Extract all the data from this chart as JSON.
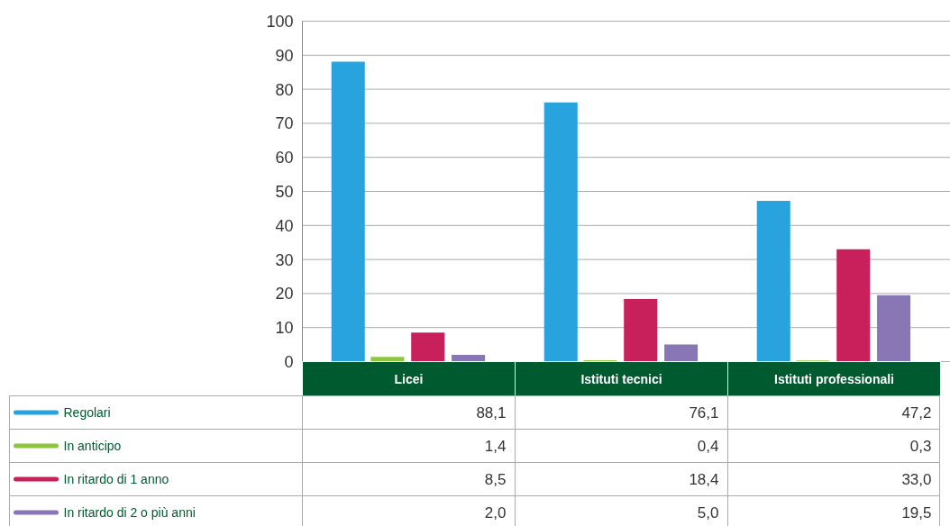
{
  "chart_data": {
    "type": "bar",
    "categories": [
      "Licei",
      "Istituti tecnici",
      "Istituti professionali"
    ],
    "series": [
      {
        "name": "Regolari",
        "color": "#29a3dd",
        "values": [
          88.1,
          76.1,
          47.2
        ],
        "value_labels": [
          "88,1",
          "76,1",
          "47,2"
        ]
      },
      {
        "name": "In anticipo",
        "color": "#8dc63f",
        "values": [
          1.4,
          0.4,
          0.3
        ],
        "value_labels": [
          "1,4",
          "0,4",
          "0,3"
        ]
      },
      {
        "name": "In ritardo di 1 anno",
        "color": "#c8205a",
        "values": [
          8.5,
          18.4,
          33.0
        ],
        "value_labels": [
          "8,5",
          "18,4",
          "33,0"
        ]
      },
      {
        "name": "In ritardo di 2 o più anni",
        "color": "#8877b4",
        "values": [
          2.0,
          5.0,
          19.5
        ],
        "value_labels": [
          "2,0",
          "5,0",
          "19,5"
        ]
      }
    ],
    "ylim": [
      0,
      100
    ],
    "yticks": [
      0,
      10,
      20,
      30,
      40,
      50,
      60,
      70,
      80,
      90,
      100
    ],
    "grid": "y",
    "legend": "bottom left"
  }
}
